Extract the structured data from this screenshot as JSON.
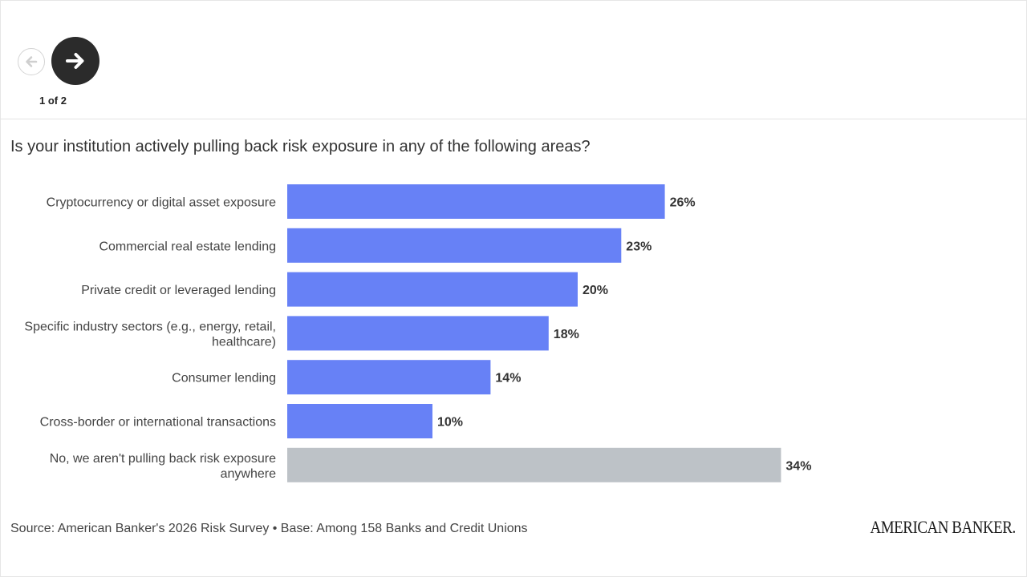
{
  "navigation": {
    "prev_icon": "arrow-left-icon",
    "next_icon": "arrow-right-icon",
    "page_indicator": "1 of 2"
  },
  "question": "Is your institution actively pulling back risk exposure in any of the following areas?",
  "source": "Source: American Banker's 2026 Risk Survey • Base: Among 158 Banks and Credit Unions",
  "brand": "AMERICAN BANKER.",
  "colors": {
    "primary_bar": "#6781f6",
    "neutral_bar": "#bdc2c7"
  },
  "chart_data": {
    "type": "bar",
    "orientation": "horizontal",
    "title": "Is your institution actively pulling back risk exposure in any of the following areas?",
    "categories": [
      [
        "Cryptocurrency or digital asset exposure"
      ],
      [
        "Commercial real estate lending"
      ],
      [
        "Private credit or leveraged lending"
      ],
      [
        "Specific industry sectors (e.g., energy, retail,",
        "healthcare)"
      ],
      [
        "Consumer lending"
      ],
      [
        "Cross-border or international transactions"
      ],
      [
        "No, we aren't pulling back risk exposure",
        "anywhere"
      ]
    ],
    "values": [
      26,
      23,
      20,
      18,
      14,
      10,
      34
    ],
    "value_labels": [
      "26%",
      "23%",
      "20%",
      "18%",
      "14%",
      "10%",
      "34%"
    ],
    "bar_colors": [
      "#6781f6",
      "#6781f6",
      "#6781f6",
      "#6781f6",
      "#6781f6",
      "#6781f6",
      "#bdc2c7"
    ],
    "unit": "%",
    "grid": false,
    "legend": "none"
  }
}
